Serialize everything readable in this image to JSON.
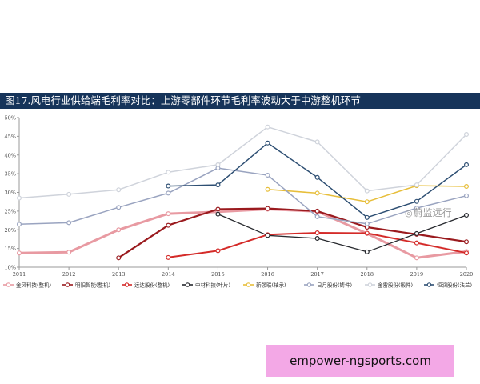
{
  "header": {
    "title": "图17.风电行业供给端毛利率对比：上游零部件环节毛利率波动大于中游整机环节"
  },
  "watermark": {
    "text": "蔚监远行",
    "icon": "wechat-icon"
  },
  "footer": {
    "url": "empower-ngsports.com"
  },
  "chart_data": {
    "type": "line",
    "title": "",
    "xlabel": "",
    "ylabel": "",
    "x": [
      "2011",
      "2012",
      "2013",
      "2014",
      "2015",
      "2016",
      "2017",
      "2018",
      "2019",
      "2020"
    ],
    "ylim": [
      10,
      50
    ],
    "yticks": [
      "10%",
      "15%",
      "20%",
      "25%",
      "30%",
      "35%",
      "40%",
      "45%",
      "50%"
    ],
    "grid": false,
    "legend_position": "bottom",
    "series": [
      {
        "name": "金风科技(整机)",
        "color": "#e89aa2",
        "width": 3,
        "values": [
          13.8,
          14.0,
          20.0,
          24.3,
          24.8,
          25.5,
          24.9,
          19.0,
          12.5,
          14.2
        ]
      },
      {
        "name": "明阳智能(整机)",
        "color": "#9a1a1e",
        "width": 2.2,
        "values": [
          null,
          null,
          12.5,
          21.2,
          25.5,
          25.7,
          25.0,
          20.7,
          18.8,
          16.8
        ]
      },
      {
        "name": "运达股份(整机)",
        "color": "#d42a28",
        "width": 2,
        "values": [
          null,
          null,
          null,
          12.6,
          14.4,
          18.7,
          19.2,
          19.1,
          16.5,
          13.8
        ]
      },
      {
        "name": "中材科技(叶片)",
        "color": "#27292e",
        "width": 1.3,
        "values": [
          null,
          null,
          null,
          null,
          24.2,
          18.5,
          17.7,
          14.1,
          19.0,
          23.9
        ]
      },
      {
        "name": "新强联(轴承)",
        "color": "#e7be3a",
        "width": 1.5,
        "values": [
          null,
          null,
          null,
          null,
          null,
          30.8,
          29.8,
          27.5,
          31.8,
          31.6
        ]
      },
      {
        "name": "日月股份(铸件)",
        "color": "#9aa4c0",
        "width": 1.5,
        "values": [
          21.5,
          21.9,
          26.0,
          29.8,
          36.5,
          34.6,
          23.5,
          21.6,
          25.8,
          29.1
        ]
      },
      {
        "name": "金雷股份(锻件)",
        "color": "#cfd3db",
        "width": 1.5,
        "values": [
          28.5,
          29.5,
          30.7,
          35.4,
          37.4,
          47.5,
          43.5,
          30.4,
          32.0,
          45.5
        ]
      },
      {
        "name": "恒润股份(法兰)",
        "color": "#2e4f73",
        "width": 1.5,
        "values": [
          null,
          null,
          null,
          31.7,
          32.0,
          43.2,
          34.0,
          23.3,
          27.6,
          37.4
        ]
      }
    ]
  }
}
